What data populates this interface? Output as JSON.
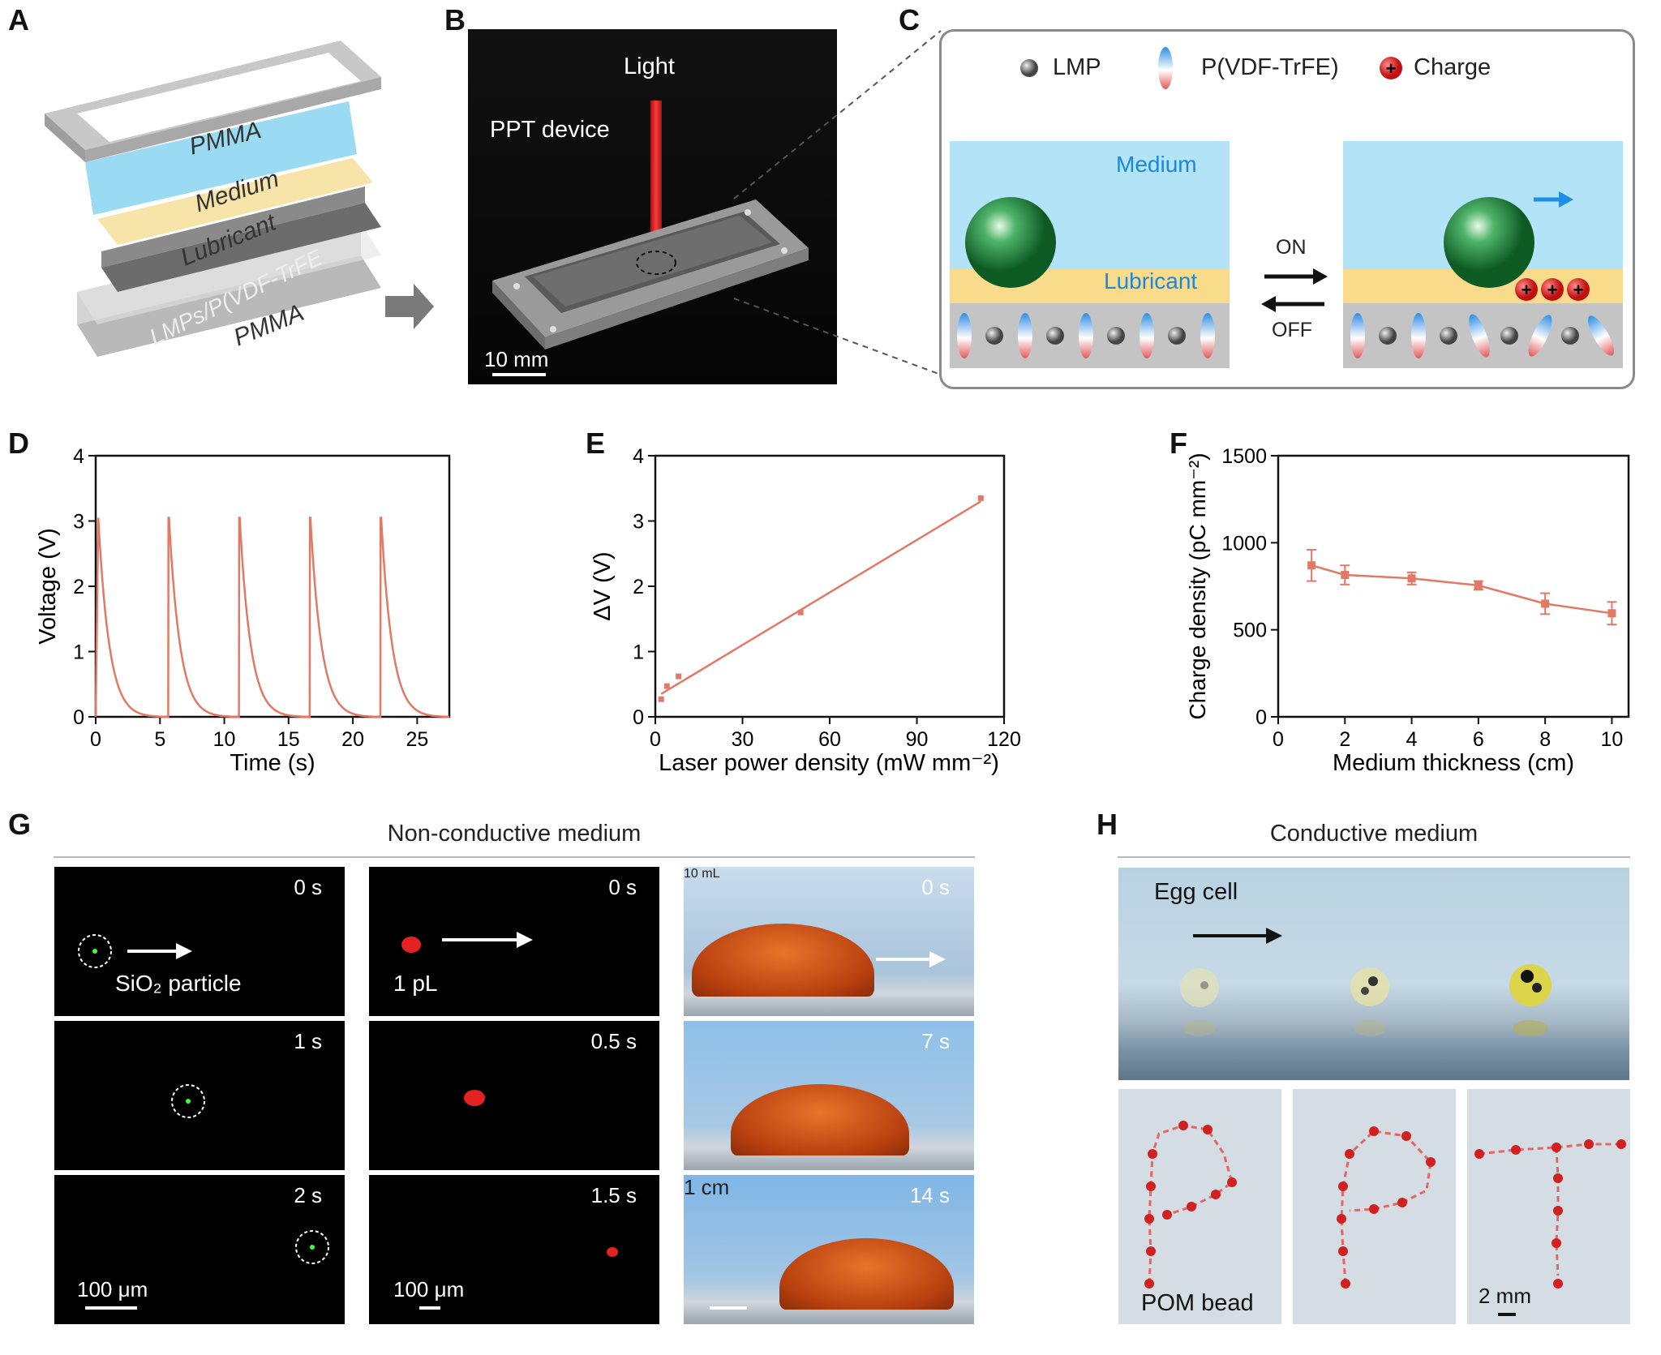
{
  "panels": {
    "A": "A",
    "B": "B",
    "C": "C",
    "D": "D",
    "E": "E",
    "F": "F",
    "G": "G",
    "H": "H"
  },
  "panelA": {
    "layers": [
      "PMMA",
      "Medium",
      "Lubricant",
      "LMPs/P(VDF-TrFE",
      "PMMA"
    ]
  },
  "panelB": {
    "light": "Light",
    "device": "PPT device",
    "scale": "10 mm"
  },
  "panelC": {
    "legend": [
      "LMP",
      "P(VDF-TrFE)",
      "Charge"
    ],
    "medium": "Medium",
    "lubricant": "Lubricant",
    "on": "ON",
    "off": "OFF"
  },
  "chart_data": [
    {
      "type": "line",
      "panel": "D",
      "xlabel": "Time (s)",
      "ylabel": "Voltage (V)",
      "xlim": [
        0,
        27.5
      ],
      "ylim": [
        0,
        4
      ],
      "xticks": [
        0,
        5,
        10,
        15,
        20,
        25
      ],
      "yticks": [
        0,
        1,
        2,
        3,
        4
      ],
      "pulse_times": [
        0.2,
        5.7,
        11.2,
        16.7,
        22.2
      ],
      "peak": 3.05,
      "decay_end": 0
    },
    {
      "type": "scatter",
      "panel": "E",
      "xlabel": "Laser power density (mW mm⁻²)",
      "ylabel": "ΔV (V)",
      "xlim": [
        0,
        120
      ],
      "ylim": [
        0,
        4
      ],
      "xticks": [
        0,
        30,
        60,
        90,
        120
      ],
      "yticks": [
        0,
        1,
        2,
        3,
        4
      ],
      "points": [
        [
          2,
          0.27
        ],
        [
          4,
          0.47
        ],
        [
          8,
          0.62
        ],
        [
          50,
          1.6
        ],
        [
          112,
          3.35
        ]
      ],
      "fit": [
        [
          2,
          0.35
        ],
        [
          112,
          3.3
        ]
      ]
    },
    {
      "type": "line",
      "panel": "F",
      "xlabel": "Medium thickness (cm)",
      "ylabel": "Charge density (pC mm⁻²)",
      "xlim": [
        0,
        10.5
      ],
      "ylim": [
        0,
        1500
      ],
      "xticks": [
        0,
        2,
        4,
        6,
        8,
        10
      ],
      "yticks": [
        0,
        500,
        1000,
        1500
      ],
      "x": [
        1,
        2,
        4,
        6,
        8,
        10
      ],
      "y": [
        870,
        815,
        795,
        755,
        650,
        595
      ],
      "err": [
        90,
        55,
        35,
        25,
        60,
        65
      ]
    }
  ],
  "panelG": {
    "title": "Non-conductive medium",
    "col1": {
      "times": [
        "0 s",
        "1 s",
        "2 s"
      ],
      "caption": "SiO₂ particle",
      "scale": "100 μm"
    },
    "col2": {
      "times": [
        "0 s",
        "0.5 s",
        "1.5 s"
      ],
      "caption": "1 pL",
      "scale": "100 μm"
    },
    "col3": {
      "times": [
        "0 s",
        "7 s",
        "14 s"
      ],
      "caption": "10 mL",
      "scale": "1 cm"
    }
  },
  "panelH": {
    "title": "Conductive medium",
    "egg": "Egg cell",
    "bead": "POM bead",
    "scale": "2 mm"
  },
  "colors": {
    "plot_line": "#e07a66",
    "laser": "#e02a2a",
    "medium_blue": "#b3e3f6",
    "lubricant_yellow": "#f8dc8c",
    "gray_layer": "#c9c9c9"
  }
}
